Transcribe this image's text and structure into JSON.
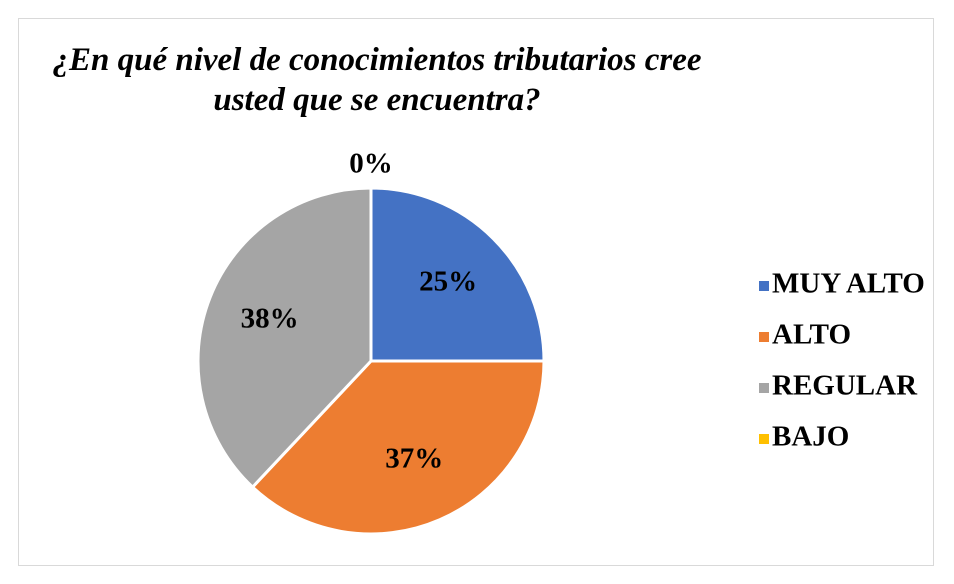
{
  "chart_data": {
    "type": "pie",
    "title": "¿En qué nivel de conocimientos tributarios cree usted que se encuentra?",
    "categories": [
      "MUY ALTO",
      "ALTO",
      "REGULAR",
      "BAJO"
    ],
    "values": [
      25,
      37,
      38,
      0
    ],
    "value_labels": [
      "25%",
      "37%",
      "38%",
      "0%"
    ],
    "colors": [
      "#4472c4",
      "#ed7d31",
      "#a5a5a5",
      "#ffc000"
    ],
    "legend": "right"
  }
}
